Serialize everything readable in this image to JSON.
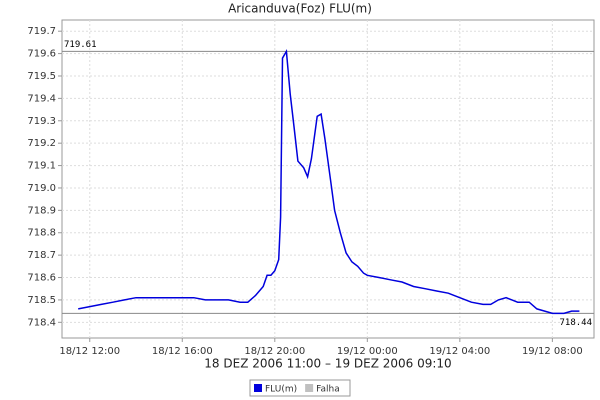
{
  "chart_data": {
    "type": "line",
    "title": "Aricanduva(Foz) FLU(m)",
    "x_label": "18 DEZ 2006 11:00 – 19 DEZ 2006 09:10",
    "x": [
      "18/12 11:30",
      "18/12 12:00",
      "18/12 12:30",
      "18/12 13:00",
      "18/12 13:30",
      "18/12 14:00",
      "18/12 14:30",
      "18/12 15:00",
      "18/12 15:30",
      "18/12 16:00",
      "18/12 16:30",
      "18/12 17:00",
      "18/12 17:30",
      "18/12 18:00",
      "18/12 18:30",
      "18/12 18:50",
      "18/12 19:10",
      "18/12 19:30",
      "18/12 19:40",
      "18/12 19:50",
      "18/12 20:00",
      "18/12 20:10",
      "18/12 20:15",
      "18/12 20:20",
      "18/12 20:30",
      "18/12 20:40",
      "18/12 20:50",
      "18/12 21:00",
      "18/12 21:15",
      "18/12 21:25",
      "18/12 21:35",
      "18/12 21:50",
      "18/12 22:00",
      "18/12 22:10",
      "18/12 22:25",
      "18/12 22:35",
      "18/12 22:50",
      "18/12 23:05",
      "18/12 23:20",
      "18/12 23:35",
      "18/12 23:50",
      "19/12 00:00",
      "19/12 00:30",
      "19/12 01:00",
      "19/12 01:30",
      "19/12 02:00",
      "19/12 02:30",
      "19/12 03:00",
      "19/12 03:30",
      "19/12 04:00",
      "19/12 04:30",
      "19/12 05:00",
      "19/12 05:20",
      "19/12 05:40",
      "19/12 06:00",
      "19/12 06:15",
      "19/12 06:30",
      "19/12 07:00",
      "19/12 07:20",
      "19/12 07:40",
      "19/12 08:00",
      "19/12 08:30",
      "19/12 08:50",
      "19/12 09:10"
    ],
    "series": [
      {
        "name": "FLU(m)",
        "color": "#0000dd",
        "values": [
          718.46,
          718.47,
          718.48,
          718.49,
          718.5,
          718.51,
          718.51,
          718.51,
          718.51,
          718.51,
          718.51,
          718.5,
          718.5,
          718.5,
          718.49,
          718.49,
          718.52,
          718.56,
          718.61,
          718.61,
          718.63,
          718.68,
          718.87,
          719.58,
          719.61,
          719.42,
          719.27,
          719.12,
          719.09,
          719.05,
          719.13,
          719.32,
          719.33,
          719.22,
          719.03,
          718.9,
          718.8,
          718.71,
          718.67,
          718.65,
          718.62,
          718.61,
          718.6,
          718.59,
          718.58,
          718.56,
          718.55,
          718.54,
          718.53,
          718.51,
          718.49,
          718.48,
          718.48,
          718.5,
          718.51,
          718.5,
          718.49,
          718.49,
          718.46,
          718.45,
          718.44,
          718.44,
          718.45,
          718.45
        ]
      }
    ],
    "extra_legend": [
      {
        "name": "Falha",
        "color": "#c0c0c0"
      }
    ],
    "reference_lines": [
      719.61,
      718.44
    ],
    "xlim": [
      "18/12 10:48",
      "19/12 09:48"
    ],
    "xticks": [
      "18/12 12:00",
      "18/12 16:00",
      "18/12 20:00",
      "19/12 00:00",
      "19/12 04:00",
      "19/12 08:00"
    ],
    "ylim": [
      718.33,
      719.75
    ],
    "yticks": [
      718.4,
      718.5,
      718.6,
      718.7,
      718.8,
      718.9,
      {
        "value": 719,
        "label": "719.0"
      },
      719.1,
      719.2,
      719.3,
      719.4,
      719.5,
      719.6,
      719.7
    ],
    "grid": true
  }
}
